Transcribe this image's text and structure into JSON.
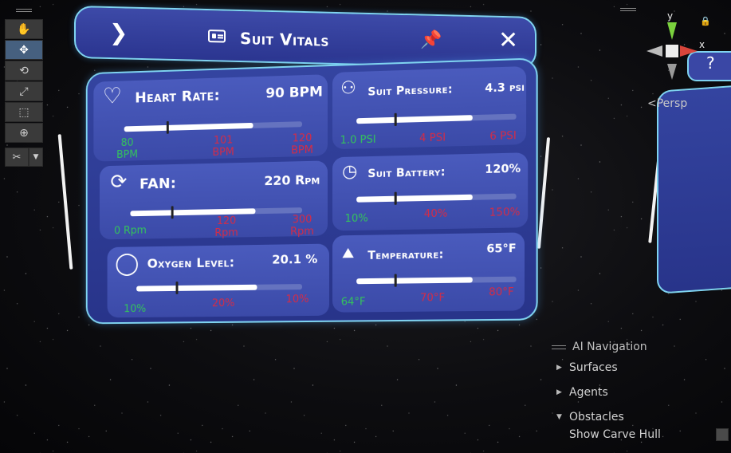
{
  "toolbar": {
    "tools": [
      {
        "name": "hand-tool",
        "icon": "hand-icon",
        "glyph": "✋",
        "active": false
      },
      {
        "name": "move-tool",
        "icon": "move-icon",
        "glyph": "✥",
        "active": true
      },
      {
        "name": "rotate-tool",
        "icon": "rotate-icon",
        "glyph": "⟲",
        "active": false
      },
      {
        "name": "scale-tool",
        "icon": "scale-icon",
        "glyph": "⤢",
        "active": false
      },
      {
        "name": "rect-tool",
        "icon": "rect-transform-icon",
        "glyph": "⬚",
        "active": false
      },
      {
        "name": "transform-tool",
        "icon": "transform-icon",
        "glyph": "⊕",
        "active": false
      }
    ],
    "custom_tool_glyph": "✂",
    "dropdown_glyph": "▼"
  },
  "header": {
    "title": "Suit Vitals",
    "back_glyph": "❯",
    "pin_glyph": "📌",
    "close_glyph": "✕"
  },
  "vitals": {
    "heart_rate": {
      "label": "Heart Rate:",
      "value": "90 BPM",
      "icon": "heart-icon",
      "glyph": "♡",
      "min_label": "80 BPM",
      "mid_label": "101 BPM",
      "max_label": "120 BPM",
      "fill_fraction": 0.73,
      "marker_fraction": 0.24
    },
    "suit_pressure": {
      "label": "Suit Pressure:",
      "value": "4.3 psi",
      "icon": "person-icon",
      "glyph": "⚇",
      "min_label": "1.0 PSI",
      "mid_label": "4 PSI",
      "max_label": "6 PSI",
      "fill_fraction": 0.73,
      "marker_fraction": 0.24
    },
    "fan": {
      "label": "FAN:",
      "value": "220 Rpm",
      "icon": "refresh-icon",
      "glyph": "⟳",
      "min_label": "0 Rpm",
      "mid_label": "120 Rpm",
      "max_label": "300 Rpm",
      "fill_fraction": 0.73,
      "marker_fraction": 0.24
    },
    "suit_battery": {
      "label": "Suit Battery:",
      "value": "120%",
      "icon": "clock-icon",
      "glyph": "◷",
      "min_label": "10%",
      "mid_label": "40%",
      "max_label": "150%",
      "fill_fraction": 0.73,
      "marker_fraction": 0.24
    },
    "oxygen_level": {
      "label": "Oxygen Level:",
      "value": "20.1 %",
      "icon": "ring-icon",
      "glyph": "◯",
      "min_label": "10%",
      "mid_label": "20%",
      "max_label": "10%",
      "fill_fraction": 0.73,
      "marker_fraction": 0.24
    },
    "temperature": {
      "label": "Temperature:",
      "value": "65°F",
      "icon": "chart-icon",
      "glyph": "⛰",
      "min_label": "64°F",
      "mid_label": "70°F",
      "max_label": "80°F",
      "fill_fraction": 0.73,
      "marker_fraction": 0.24
    }
  },
  "gizmo": {
    "y_label": "y",
    "x_label": "x",
    "projection": "<Persp",
    "help_glyph": "?",
    "lock_glyph": "🔒"
  },
  "ai_navigation": {
    "title": "AI Navigation",
    "items": [
      {
        "label": "Surfaces",
        "expanded": false
      },
      {
        "label": "Agents",
        "expanded": false
      },
      {
        "label": "Obstacles",
        "expanded": true
      }
    ],
    "show_carve_hull_label": "Show Carve Hull",
    "show_carve_hull_checked": false
  },
  "colors": {
    "accent_green": "#34c35c",
    "accent_red": "#d42c47",
    "panel_border": "#7fd3f0",
    "panel_fill": "#3444a0"
  }
}
